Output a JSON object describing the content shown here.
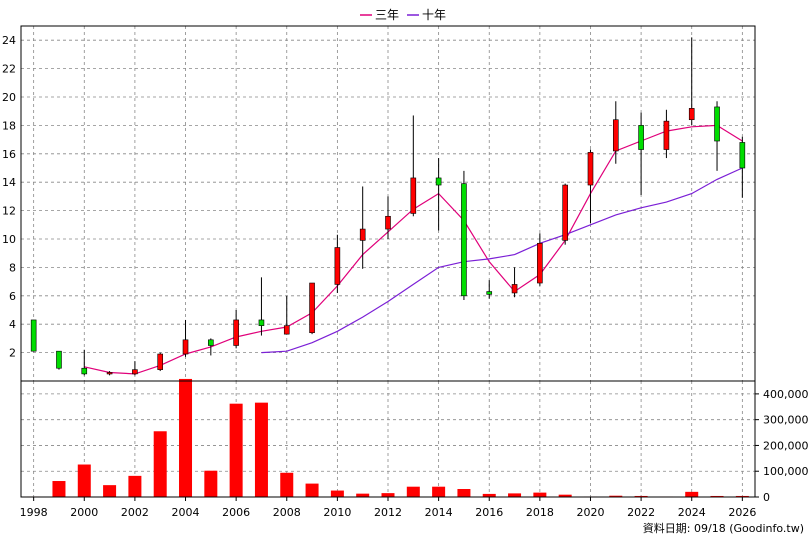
{
  "legend": {
    "ma3_label": "三年",
    "ma10_label": "十年"
  },
  "footer": {
    "source_text": "資料日期: 09/18 (Goodinfo.tw)"
  },
  "colors": {
    "up": "#ff0000",
    "down": "#00dd00",
    "ma3": "#e0007a",
    "ma10": "#7b1fd6",
    "volume": "#ff0000",
    "grid": "#888888"
  },
  "chart_data": [
    {
      "type": "candlestick",
      "title": "",
      "xlabel": "",
      "ylabel": "",
      "ylim": [
        0,
        25
      ],
      "yticks": [
        2,
        4,
        6,
        8,
        10,
        12,
        14,
        16,
        18,
        20,
        22,
        24
      ],
      "xticks": [
        "1998",
        "2000",
        "2002",
        "2004",
        "2006",
        "2008",
        "2010",
        "2012",
        "2014",
        "2016",
        "2018",
        "2020",
        "2022",
        "2024",
        "2026"
      ],
      "grid": true,
      "legend_position": "top-center",
      "years": [
        1998,
        1999,
        2000,
        2001,
        2002,
        2003,
        2004,
        2005,
        2006,
        2007,
        2008,
        2009,
        2010,
        2011,
        2012,
        2013,
        2014,
        2015,
        2016,
        2017,
        2018,
        2019,
        2020,
        2021,
        2022,
        2023,
        2024,
        2025,
        2026
      ],
      "candles": [
        {
          "year": 1998,
          "open": 4.3,
          "high": 4.3,
          "low": 2.1,
          "close": 2.1
        },
        {
          "year": 1999,
          "open": 2.1,
          "high": 2.1,
          "low": 0.8,
          "close": 0.9
        },
        {
          "year": 2000,
          "open": 0.9,
          "high": 2.2,
          "low": 0.4,
          "close": 0.5
        },
        {
          "year": 2001,
          "open": 0.5,
          "high": 0.7,
          "low": 0.4,
          "close": 0.6
        },
        {
          "year": 2002,
          "open": 0.5,
          "high": 1.4,
          "low": 0.4,
          "close": 0.8
        },
        {
          "year": 2003,
          "open": 0.8,
          "high": 2.0,
          "low": 0.7,
          "close": 1.9
        },
        {
          "year": 2004,
          "open": 1.9,
          "high": 4.3,
          "low": 1.7,
          "close": 2.9
        },
        {
          "year": 2005,
          "open": 2.9,
          "high": 3.0,
          "low": 1.8,
          "close": 2.5
        },
        {
          "year": 2006,
          "open": 2.5,
          "high": 5.0,
          "low": 2.3,
          "close": 4.3
        },
        {
          "year": 2007,
          "open": 4.3,
          "high": 7.3,
          "low": 3.2,
          "close": 3.9
        },
        {
          "year": 2008,
          "open": 3.3,
          "high": 6.0,
          "low": 3.3,
          "close": 3.9
        },
        {
          "year": 2009,
          "open": 3.4,
          "high": 6.9,
          "low": 3.3,
          "close": 6.9
        },
        {
          "year": 2010,
          "open": 6.8,
          "high": 10.3,
          "low": 6.2,
          "close": 9.4
        },
        {
          "year": 2011,
          "open": 9.9,
          "high": 13.7,
          "low": 7.9,
          "close": 10.7
        },
        {
          "year": 2012,
          "open": 10.7,
          "high": 13.0,
          "low": 10.0,
          "close": 11.6
        },
        {
          "year": 2013,
          "open": 11.8,
          "high": 18.7,
          "low": 11.6,
          "close": 14.3
        },
        {
          "year": 2014,
          "open": 14.3,
          "high": 15.7,
          "low": 10.6,
          "close": 13.8
        },
        {
          "year": 2015,
          "open": 13.9,
          "high": 14.8,
          "low": 5.7,
          "close": 6.0
        },
        {
          "year": 2016,
          "open": 6.3,
          "high": 7.1,
          "low": 5.8,
          "close": 6.1
        },
        {
          "year": 2017,
          "open": 6.2,
          "high": 8.0,
          "low": 5.9,
          "close": 6.8
        },
        {
          "year": 2018,
          "open": 6.9,
          "high": 10.4,
          "low": 6.7,
          "close": 9.7
        },
        {
          "year": 2019,
          "open": 9.9,
          "high": 13.9,
          "low": 9.6,
          "close": 13.8
        },
        {
          "year": 2020,
          "open": 13.8,
          "high": 16.3,
          "low": 11.1,
          "close": 16.1
        },
        {
          "year": 2021,
          "open": 16.2,
          "high": 19.7,
          "low": 15.3,
          "close": 18.4
        },
        {
          "year": 2022,
          "open": 18.0,
          "high": 18.9,
          "low": 13.1,
          "close": 16.3
        },
        {
          "year": 2023,
          "open": 16.3,
          "high": 19.1,
          "low": 15.7,
          "close": 18.3
        },
        {
          "year": 2024,
          "open": 18.4,
          "high": 24.2,
          "low": 18.0,
          "close": 19.2
        },
        {
          "year": 2025,
          "open": 19.3,
          "high": 19.7,
          "low": 14.8,
          "close": 16.9
        },
        {
          "year": 2026,
          "open": 16.8,
          "high": 17.2,
          "low": 12.9,
          "close": 15.0
        }
      ],
      "series": [
        {
          "name": "三年",
          "x": [
            2000,
            2001,
            2002,
            2003,
            2004,
            2005,
            2006,
            2007,
            2008,
            2009,
            2010,
            2011,
            2012,
            2013,
            2014,
            2015,
            2016,
            2017,
            2018,
            2019,
            2020,
            2021,
            2022,
            2023,
            2024,
            2025,
            2026
          ],
          "values": [
            1.0,
            0.6,
            0.5,
            1.1,
            1.9,
            2.4,
            3.1,
            3.5,
            3.8,
            4.8,
            6.7,
            8.9,
            10.5,
            12.1,
            13.2,
            11.3,
            8.4,
            6.3,
            7.5,
            9.9,
            13.2,
            16.2,
            16.9,
            17.6,
            17.9,
            18.0,
            16.9
          ]
        },
        {
          "name": "十年",
          "x": [
            2007,
            2008,
            2009,
            2010,
            2011,
            2012,
            2013,
            2014,
            2015,
            2016,
            2017,
            2018,
            2019,
            2020,
            2021,
            2022,
            2023,
            2024,
            2025,
            2026
          ],
          "values": [
            2.0,
            2.1,
            2.7,
            3.5,
            4.5,
            5.6,
            6.8,
            8.0,
            8.4,
            8.6,
            8.9,
            9.7,
            10.3,
            11.0,
            11.7,
            12.2,
            12.6,
            13.2,
            14.2,
            15.0
          ]
        }
      ]
    },
    {
      "type": "bar",
      "title": "",
      "xlabel": "",
      "ylabel": "",
      "ylim": [
        0,
        450000
      ],
      "yticks": [
        0,
        100000,
        200000,
        300000,
        400000
      ],
      "ytick_labels": [
        "0",
        "100,000",
        "200,000",
        "300,000",
        "400,000"
      ],
      "grid": true,
      "categories": [
        1998,
        1999,
        2000,
        2001,
        2002,
        2003,
        2004,
        2005,
        2006,
        2007,
        2008,
        2009,
        2010,
        2011,
        2012,
        2013,
        2014,
        2015,
        2016,
        2017,
        2018,
        2019,
        2020,
        2021,
        2022,
        2023,
        2024,
        2025,
        2026
      ],
      "values": [
        2000,
        62000,
        126000,
        46000,
        82000,
        255000,
        458000,
        102000,
        362000,
        366000,
        94000,
        52000,
        25000,
        13000,
        15000,
        40000,
        40000,
        31000,
        12000,
        14000,
        17000,
        9000,
        2000,
        5000,
        4000,
        2000,
        20000,
        4000,
        4000
      ]
    }
  ]
}
